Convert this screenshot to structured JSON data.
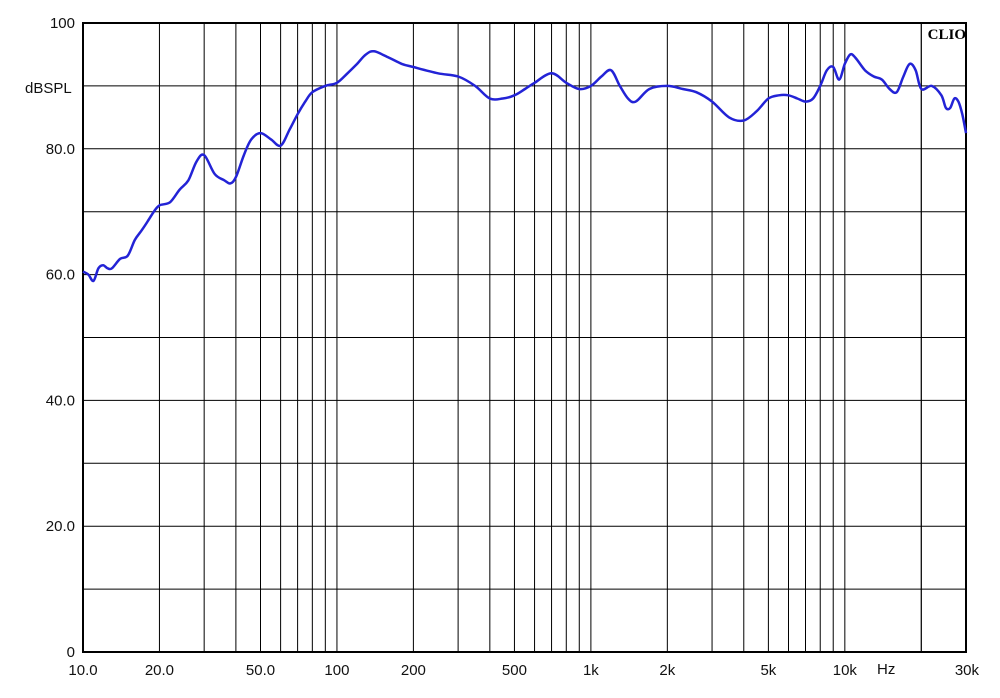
{
  "chart_data": {
    "type": "line",
    "title": "",
    "brand": "CLIO",
    "xlabel": "Hz",
    "ylabel": "dBSPL",
    "x_scale": "log",
    "xlim": [
      10,
      30000
    ],
    "ylim": [
      0,
      100
    ],
    "grid": true,
    "x_ticks": [
      {
        "value": 10,
        "label": "10.0"
      },
      {
        "value": 20,
        "label": "20.0"
      },
      {
        "value": 50,
        "label": "50.0"
      },
      {
        "value": 100,
        "label": "100"
      },
      {
        "value": 200,
        "label": "200"
      },
      {
        "value": 500,
        "label": "500"
      },
      {
        "value": 1000,
        "label": "1k"
      },
      {
        "value": 2000,
        "label": "2k"
      },
      {
        "value": 5000,
        "label": "5k"
      },
      {
        "value": 10000,
        "label": "10k"
      },
      {
        "value": 30000,
        "label": "30k"
      }
    ],
    "y_ticks": [
      {
        "value": 100,
        "label": "100"
      },
      {
        "value": 80,
        "label": "80.0"
      },
      {
        "value": 60,
        "label": "60.0"
      },
      {
        "value": 40,
        "label": "40.0"
      },
      {
        "value": 20,
        "label": "20.0"
      },
      {
        "value": 0,
        "label": "0"
      }
    ],
    "series": [
      {
        "color": "#2323d6",
        "x": [
          10,
          10.5,
          11,
          11.5,
          12,
          12.5,
          13,
          14,
          15,
          16,
          17,
          18,
          19,
          20,
          22,
          24,
          26,
          28,
          30,
          33,
          36,
          38,
          40,
          43,
          46,
          50,
          55,
          60,
          65,
          70,
          75,
          80,
          90,
          100,
          110,
          120,
          130,
          140,
          160,
          180,
          200,
          250,
          300,
          350,
          400,
          450,
          500,
          550,
          600,
          700,
          800,
          900,
          1000,
          1100,
          1200,
          1300,
          1400,
          1500,
          1700,
          2000,
          2300,
          2600,
          3000,
          3500,
          4000,
          4500,
          5000,
          5500,
          6000,
          6500,
          7000,
          7500,
          8000,
          8500,
          9000,
          9500,
          10000,
          10500,
          11000,
          12000,
          13000,
          14000,
          15000,
          16000,
          17000,
          18000,
          19000,
          20000,
          22000,
          24000,
          25000,
          26000,
          27000,
          28000,
          29000,
          30000
        ],
        "y": [
          60.5,
          60,
          59,
          61,
          61.5,
          61,
          61,
          62.5,
          63,
          65.5,
          67,
          68.5,
          70,
          71,
          71.5,
          73.5,
          75,
          78,
          79,
          76,
          75,
          74.5,
          75.5,
          79,
          81.5,
          82.5,
          81.5,
          80.5,
          83,
          85.5,
          87.5,
          89,
          90,
          90.5,
          92,
          93.5,
          95,
          95.5,
          94.5,
          93.5,
          93,
          92,
          91.5,
          90,
          88,
          88,
          88.5,
          89.5,
          90.5,
          92,
          90.5,
          89.5,
          90,
          91.5,
          92.5,
          90,
          88,
          87.5,
          89.5,
          90,
          89.5,
          89,
          87.5,
          85,
          84.5,
          86,
          88,
          88.5,
          88.5,
          88,
          87.5,
          88,
          90,
          92.5,
          93,
          91,
          93.5,
          95,
          94.5,
          92.5,
          91.5,
          91,
          89.5,
          89,
          91.5,
          93.5,
          92.5,
          89.5,
          90,
          88.5,
          86.5,
          86.5,
          88,
          87.5,
          85.5,
          82.5
        ]
      }
    ]
  }
}
